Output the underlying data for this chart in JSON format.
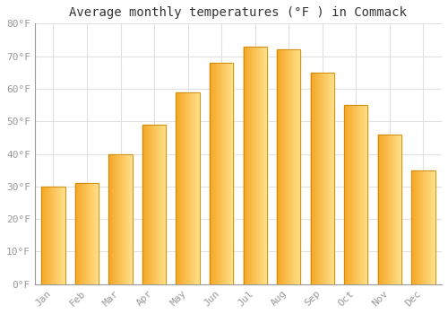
{
  "title": "Average monthly temperatures (°F ) in Commack",
  "months": [
    "Jan",
    "Feb",
    "Mar",
    "Apr",
    "May",
    "Jun",
    "Jul",
    "Aug",
    "Sep",
    "Oct",
    "Nov",
    "Dec"
  ],
  "values": [
    30,
    31,
    40,
    49,
    59,
    68,
    73,
    72,
    65,
    55,
    46,
    35
  ],
  "bar_color_left": "#F5A623",
  "bar_color_right": "#FFE08A",
  "bar_color_mid": "#FFCC44",
  "bar_edge_color": "#C8860A",
  "ylim": [
    0,
    80
  ],
  "yticks": [
    0,
    10,
    20,
    30,
    40,
    50,
    60,
    70,
    80
  ],
  "ytick_labels": [
    "0°F",
    "10°F",
    "20°F",
    "30°F",
    "40°F",
    "50°F",
    "60°F",
    "70°F",
    "80°F"
  ],
  "background_color": "#FFFFFF",
  "grid_color": "#E0E0E0",
  "title_fontsize": 10,
  "tick_fontsize": 8,
  "title_color": "#333333",
  "tick_color": "#999999",
  "bar_width": 0.7,
  "n_grad": 80
}
